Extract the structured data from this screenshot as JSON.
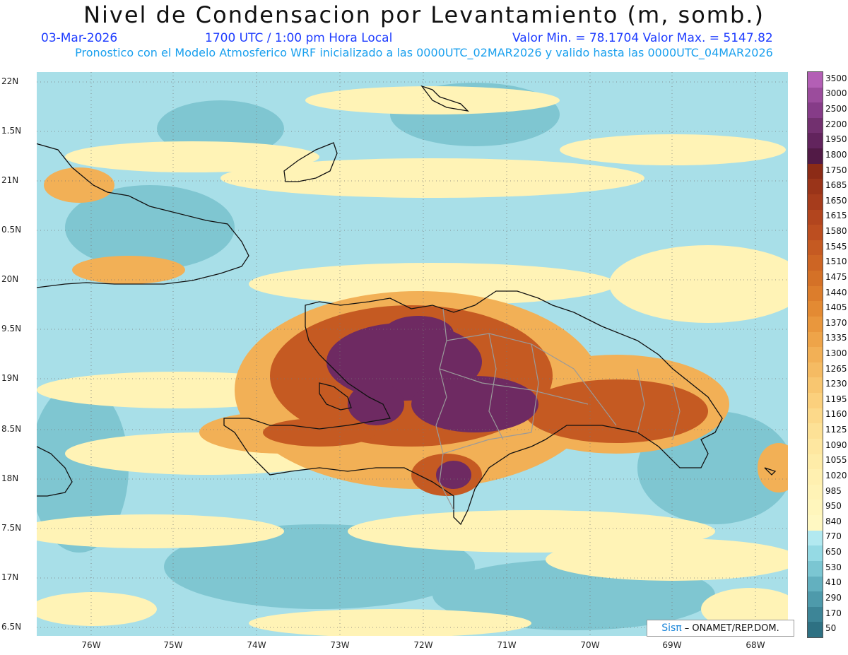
{
  "title": "Nivel de Condensacion por Levantamiento (m, somb.)",
  "header": {
    "date": "03-Mar-2026",
    "time": "1700 UTC / 1:00 pm Hora Local",
    "minmax": "Valor Min. = 78.1704   Valor Max. = 5147.82",
    "subtitle": "Pronostico con el Modelo Atmosferico WRF inicializado a las 0000UTC_02MAR2026 y valido hasta las  0000UTC_04MAR2026"
  },
  "footer": {
    "logo": "Sisπ",
    "text": "– ONAMET/REP.DOM."
  },
  "chart_data": {
    "type": "heatmap",
    "lat_ticks": [
      "22N",
      "1.5N",
      "21N",
      "0.5N",
      "20N",
      "9.5N",
      "19N",
      "8.5N",
      "18N",
      "7.5N",
      "17N",
      "6.5N"
    ],
    "lon_ticks": [
      "76W",
      "75W",
      "74W",
      "73W",
      "72W",
      "71W",
      "70W",
      "69W",
      "68W"
    ],
    "colorbar": [
      {
        "label": "3500",
        "color": "#b35fb5"
      },
      {
        "label": "3000",
        "color": "#9b4c9c"
      },
      {
        "label": "2500",
        "color": "#863c88"
      },
      {
        "label": "2200",
        "color": "#72306f"
      },
      {
        "label": "1950",
        "color": "#62245d"
      },
      {
        "label": "1800",
        "color": "#521a46"
      },
      {
        "label": "1750",
        "color": "#8c2b16"
      },
      {
        "label": "1685",
        "color": "#9a3419"
      },
      {
        "label": "1650",
        "color": "#a63c1c"
      },
      {
        "label": "1615",
        "color": "#b2451e"
      },
      {
        "label": "1580",
        "color": "#bc4e20"
      },
      {
        "label": "1545",
        "color": "#c55a22"
      },
      {
        "label": "1510",
        "color": "#cd6524"
      },
      {
        "label": "1475",
        "color": "#d47127"
      },
      {
        "label": "1440",
        "color": "#dc7d2c"
      },
      {
        "label": "1405",
        "color": "#e38a33"
      },
      {
        "label": "1370",
        "color": "#e9973d"
      },
      {
        "label": "1335",
        "color": "#eea449"
      },
      {
        "label": "1300",
        "color": "#f2b056"
      },
      {
        "label": "1265",
        "color": "#f5bb63"
      },
      {
        "label": "1230",
        "color": "#f8c670"
      },
      {
        "label": "1195",
        "color": "#fbd07d"
      },
      {
        "label": "1160",
        "color": "#fcd98a"
      },
      {
        "label": "1125",
        "color": "#fde196"
      },
      {
        "label": "1090",
        "color": "#fee7a0"
      },
      {
        "label": "1055",
        "color": "#feeca8"
      },
      {
        "label": "1020",
        "color": "#fff0b0"
      },
      {
        "label": "985",
        "color": "#fff3b6"
      },
      {
        "label": "950",
        "color": "#fff6bc"
      },
      {
        "label": "840",
        "color": "#fff8c2"
      },
      {
        "label": "770",
        "color": "#b2e9f0"
      },
      {
        "label": "650",
        "color": "#95dae4"
      },
      {
        "label": "530",
        "color": "#7bc6d2"
      },
      {
        "label": "410",
        "color": "#63b0bf"
      },
      {
        "label": "290",
        "color": "#4e9aab"
      },
      {
        "label": "170",
        "color": "#3d8597"
      },
      {
        "label": "50",
        "color": "#2e7183"
      }
    ],
    "min": 78.1704,
    "max": 5147.82
  }
}
